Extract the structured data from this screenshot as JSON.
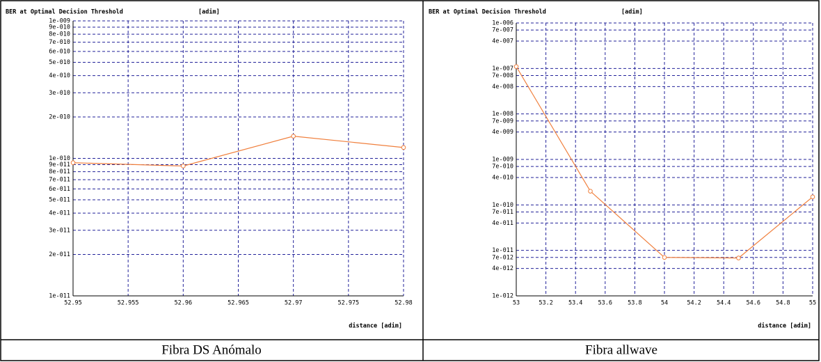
{
  "chart_data": [
    {
      "type": "line",
      "title": "BER at Optimal Decision Threshold",
      "ylabel": "[adim]",
      "xlabel": "distance [adim]",
      "caption": "Fibra DS Anómalo",
      "yscale": "log",
      "grid": true,
      "xlim": [
        52.95,
        52.98
      ],
      "xticks": [
        52.95,
        52.955,
        52.96,
        52.965,
        52.97,
        52.975,
        52.98
      ],
      "ylim": [
        1e-11,
        1e-09
      ],
      "yticks": [
        {
          "value": 1e-09,
          "label": "1e-009"
        },
        {
          "value": 9e-10,
          "label": "9e-010"
        },
        {
          "value": 8e-10,
          "label": "8e-010"
        },
        {
          "value": 7e-10,
          "label": "7e-010"
        },
        {
          "value": 6e-10,
          "label": "6e-010"
        },
        {
          "value": 5e-10,
          "label": "5e-010"
        },
        {
          "value": 4e-10,
          "label": "4e-010"
        },
        {
          "value": 3e-10,
          "label": "3e-010"
        },
        {
          "value": 2e-10,
          "label": "2e-010"
        },
        {
          "value": 1e-10,
          "label": "1e-010"
        },
        {
          "value": 9e-11,
          "label": "9e-011"
        },
        {
          "value": 8e-11,
          "label": "8e-011"
        },
        {
          "value": 7e-11,
          "label": "7e-011"
        },
        {
          "value": 6e-11,
          "label": "6e-011"
        },
        {
          "value": 5e-11,
          "label": "5e-011"
        },
        {
          "value": 4e-11,
          "label": "4e-011"
        },
        {
          "value": 3e-11,
          "label": "3e-011"
        },
        {
          "value": 2e-11,
          "label": "2e-011"
        },
        {
          "value": 1e-11,
          "label": "1e-011"
        }
      ],
      "x": [
        52.95,
        52.96,
        52.97,
        52.98
      ],
      "series": [
        {
          "color": "#f07f3c",
          "values": [
            9.3e-11,
            8.8e-11,
            1.45e-10,
            1.2e-10
          ]
        }
      ]
    },
    {
      "type": "line",
      "title": "BER at Optimal Decision Threshold",
      "ylabel": "[adim]",
      "xlabel": "distance [adim]",
      "caption": "Fibra allwave",
      "yscale": "log",
      "grid": true,
      "xlim": [
        53,
        55
      ],
      "xticks": [
        53,
        53.2,
        53.4,
        53.6,
        53.8,
        54,
        54.2,
        54.4,
        54.6,
        54.8,
        55
      ],
      "ylim": [
        1e-12,
        1e-06
      ],
      "yticks": [
        {
          "value": 1e-06,
          "label": "1e-006"
        },
        {
          "value": 7e-07,
          "label": "7e-007"
        },
        {
          "value": 4e-07,
          "label": "4e-007"
        },
        {
          "value": 1e-07,
          "label": "1e-007"
        },
        {
          "value": 7e-08,
          "label": "7e-008"
        },
        {
          "value": 4e-08,
          "label": "4e-008"
        },
        {
          "value": 1e-08,
          "label": "1e-008"
        },
        {
          "value": 7e-09,
          "label": "7e-009"
        },
        {
          "value": 4e-09,
          "label": "4e-009"
        },
        {
          "value": 1e-09,
          "label": "1e-009"
        },
        {
          "value": 7e-10,
          "label": "7e-010"
        },
        {
          "value": 4e-10,
          "label": "4e-010"
        },
        {
          "value": 1e-10,
          "label": "1e-010"
        },
        {
          "value": 7e-11,
          "label": "7e-011"
        },
        {
          "value": 4e-11,
          "label": "4e-011"
        },
        {
          "value": 1e-11,
          "label": "1e-011"
        },
        {
          "value": 7e-12,
          "label": "7e-012"
        },
        {
          "value": 4e-12,
          "label": "4e-012"
        },
        {
          "value": 1e-12,
          "label": "1e-012"
        }
      ],
      "x": [
        53,
        53.5,
        54,
        54.5,
        55
      ],
      "series": [
        {
          "color": "#f07f3c",
          "values": [
            1.1e-07,
            2e-10,
            7e-12,
            6.8e-12,
            1.5e-10
          ]
        }
      ]
    }
  ]
}
